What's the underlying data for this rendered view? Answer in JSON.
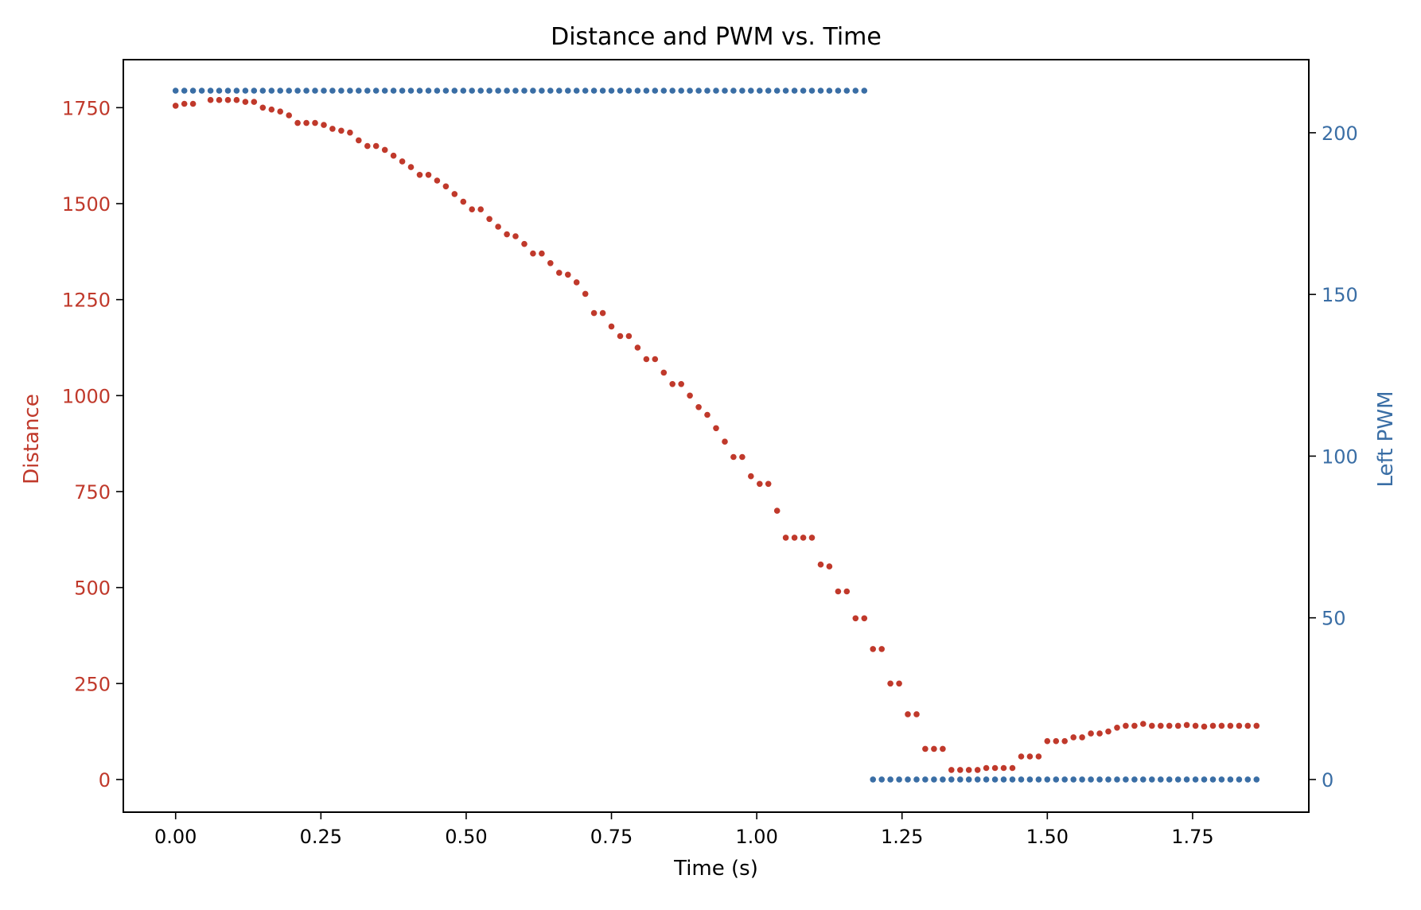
{
  "chart_data": {
    "type": "scatter",
    "title": "Distance and PWM vs. Time",
    "xlabel": "Time (s)",
    "ylabel_left": "Distance",
    "ylabel_right": "Left PWM",
    "xlim": [
      -0.09,
      1.95
    ],
    "ylim_left": [
      -85,
      1875
    ],
    "ylim_right": [
      -10.1,
      222.6
    ],
    "xticks": [
      0.0,
      0.25,
      0.5,
      0.75,
      1.0,
      1.25,
      1.5,
      1.75
    ],
    "xtick_labels": [
      "0.00",
      "0.25",
      "0.50",
      "0.75",
      "1.00",
      "1.25",
      "1.50",
      "1.75"
    ],
    "yticks_left": [
      0,
      250,
      500,
      750,
      1000,
      1250,
      1500,
      1750
    ],
    "ytick_labels_left": [
      "0",
      "250",
      "500",
      "750",
      "1000",
      "1250",
      "1500",
      "1750"
    ],
    "yticks_right": [
      0,
      50,
      100,
      150,
      200
    ],
    "ytick_labels_right": [
      "0",
      "50",
      "100",
      "150",
      "200"
    ],
    "grid": false,
    "colors": {
      "distance": "#c0392b",
      "pwm": "#3a6ea5"
    },
    "series": [
      {
        "axis": "left",
        "color": "#c0392b",
        "x": [
          0.0,
          0.015,
          0.03,
          0.06,
          0.075,
          0.09,
          0.105,
          0.12,
          0.135,
          0.15,
          0.165,
          0.18,
          0.195,
          0.21,
          0.225,
          0.24,
          0.255,
          0.27,
          0.285,
          0.3,
          0.315,
          0.33,
          0.345,
          0.36,
          0.375,
          0.39,
          0.405,
          0.42,
          0.435,
          0.45,
          0.465,
          0.48,
          0.495,
          0.51,
          0.525,
          0.54,
          0.555,
          0.57,
          0.585,
          0.6,
          0.615,
          0.63,
          0.645,
          0.66,
          0.675,
          0.69,
          0.705,
          0.72,
          0.735,
          0.75,
          0.765,
          0.78,
          0.795,
          0.81,
          0.825,
          0.84,
          0.855,
          0.87,
          0.885,
          0.9,
          0.915,
          0.93,
          0.945,
          0.96,
          0.975,
          0.99,
          1.005,
          1.02,
          1.035,
          1.05,
          1.065,
          1.08,
          1.095,
          1.11,
          1.125,
          1.14,
          1.155,
          1.17,
          1.185,
          1.2,
          1.215,
          1.23,
          1.245,
          1.26,
          1.275,
          1.29,
          1.305,
          1.32,
          1.335,
          1.35,
          1.365,
          1.38,
          1.395,
          1.41,
          1.425,
          1.44,
          1.455,
          1.47,
          1.485,
          1.5,
          1.515,
          1.53,
          1.545,
          1.56,
          1.575,
          1.59,
          1.605,
          1.62,
          1.635,
          1.65,
          1.665,
          1.68,
          1.695,
          1.71,
          1.725,
          1.74,
          1.755,
          1.77,
          1.785,
          1.8,
          1.815,
          1.83,
          1.845,
          1.86
        ],
        "y": [
          1755,
          1760,
          1760,
          1770,
          1770,
          1770,
          1770,
          1765,
          1765,
          1750,
          1745,
          1740,
          1730,
          1710,
          1710,
          1710,
          1705,
          1695,
          1690,
          1685,
          1665,
          1650,
          1650,
          1640,
          1625,
          1610,
          1595,
          1575,
          1575,
          1560,
          1545,
          1525,
          1505,
          1485,
          1485,
          1460,
          1440,
          1420,
          1415,
          1395,
          1370,
          1370,
          1345,
          1320,
          1315,
          1295,
          1265,
          1215,
          1215,
          1180,
          1155,
          1155,
          1125,
          1095,
          1095,
          1060,
          1030,
          1030,
          1000,
          970,
          950,
          915,
          880,
          840,
          840,
          790,
          770,
          770,
          700,
          630,
          630,
          630,
          630,
          560,
          555,
          490,
          490,
          420,
          420,
          340,
          340,
          250,
          250,
          170,
          170,
          80,
          80,
          80,
          25,
          25,
          25,
          25,
          30,
          30,
          30,
          30,
          60,
          60,
          60,
          100,
          100,
          100,
          110,
          110,
          120,
          120,
          125,
          135,
          140,
          140,
          145,
          140,
          140,
          140,
          140,
          142,
          140,
          138,
          140,
          140,
          140,
          140,
          140,
          140
        ]
      },
      {
        "axis": "right",
        "color": "#3a6ea5",
        "x": [
          0.0,
          0.015,
          0.03,
          0.045,
          0.06,
          0.075,
          0.09,
          0.105,
          0.12,
          0.135,
          0.15,
          0.165,
          0.18,
          0.195,
          0.21,
          0.225,
          0.24,
          0.255,
          0.27,
          0.285,
          0.3,
          0.315,
          0.33,
          0.345,
          0.36,
          0.375,
          0.39,
          0.405,
          0.42,
          0.435,
          0.45,
          0.465,
          0.48,
          0.495,
          0.51,
          0.525,
          0.54,
          0.555,
          0.57,
          0.585,
          0.6,
          0.615,
          0.63,
          0.645,
          0.66,
          0.675,
          0.69,
          0.705,
          0.72,
          0.735,
          0.75,
          0.765,
          0.78,
          0.795,
          0.81,
          0.825,
          0.84,
          0.855,
          0.87,
          0.885,
          0.9,
          0.915,
          0.93,
          0.945,
          0.96,
          0.975,
          0.99,
          1.005,
          1.02,
          1.035,
          1.05,
          1.065,
          1.08,
          1.095,
          1.11,
          1.125,
          1.14,
          1.155,
          1.17,
          1.185,
          1.2,
          1.215,
          1.23,
          1.245,
          1.26,
          1.275,
          1.29,
          1.305,
          1.32,
          1.335,
          1.35,
          1.365,
          1.38,
          1.395,
          1.41,
          1.425,
          1.44,
          1.455,
          1.47,
          1.485,
          1.5,
          1.515,
          1.53,
          1.545,
          1.56,
          1.575,
          1.59,
          1.605,
          1.62,
          1.635,
          1.65,
          1.665,
          1.68,
          1.695,
          1.71,
          1.725,
          1.74,
          1.755,
          1.77,
          1.785,
          1.8,
          1.815,
          1.83,
          1.845,
          1.86
        ],
        "y": [
          213,
          213,
          213,
          213,
          213,
          213,
          213,
          213,
          213,
          213,
          213,
          213,
          213,
          213,
          213,
          213,
          213,
          213,
          213,
          213,
          213,
          213,
          213,
          213,
          213,
          213,
          213,
          213,
          213,
          213,
          213,
          213,
          213,
          213,
          213,
          213,
          213,
          213,
          213,
          213,
          213,
          213,
          213,
          213,
          213,
          213,
          213,
          213,
          213,
          213,
          213,
          213,
          213,
          213,
          213,
          213,
          213,
          213,
          213,
          213,
          213,
          213,
          213,
          213,
          213,
          213,
          213,
          213,
          213,
          213,
          213,
          213,
          213,
          213,
          213,
          213,
          213,
          213,
          213,
          213,
          0,
          0,
          0,
          0,
          0,
          0,
          0,
          0,
          0,
          0,
          0,
          0,
          0,
          0,
          0,
          0,
          0,
          0,
          0,
          0,
          0,
          0,
          0,
          0,
          0,
          0,
          0,
          0,
          0,
          0,
          0,
          0,
          0,
          0,
          0,
          0,
          0,
          0,
          0,
          0,
          0,
          0,
          0,
          0,
          0
        ]
      }
    ]
  }
}
